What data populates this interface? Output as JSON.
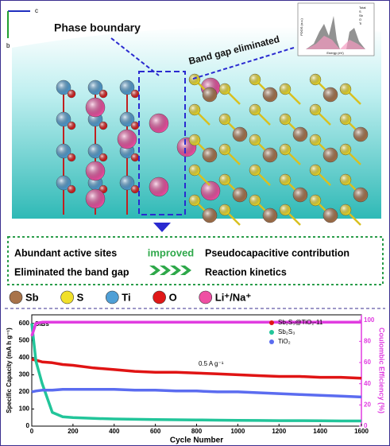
{
  "illustration": {
    "phase_label": "Phase boundary",
    "band_label": "Band gap eliminated",
    "axis_c": "c",
    "axis_b": "b",
    "inset": {
      "y_label": "PDOS (a.u.)",
      "x_label": "Energy (eV)",
      "legend": [
        "Total",
        "S",
        "Sb",
        "O",
        "Ti"
      ]
    }
  },
  "summary": {
    "left": [
      "Abundant active sites",
      "Eliminated the band gap"
    ],
    "middle": "improved",
    "right": [
      "Pseudocapacitive contribution",
      "Reaction kinetics"
    ]
  },
  "atom_legend": [
    {
      "label": "Sb",
      "color": "#a8734a"
    },
    {
      "label": "S",
      "color": "#f1e02a"
    },
    {
      "label": "Ti",
      "color": "#4f9fd6"
    },
    {
      "label": "O",
      "color": "#e01818"
    },
    {
      "label": "Li⁺/Na⁺",
      "color": "#ef4fa3"
    }
  ],
  "chart_data": {
    "type": "line",
    "x_label": "Cycle Number",
    "y_label": "Specific Capacity (mA h g⁻¹)",
    "y2_label": "Coulombic Efficiency (%)",
    "annotations": [
      "SIBs",
      "0.5 A g⁻¹"
    ],
    "x": [
      0,
      20,
      50,
      100,
      150,
      200,
      300,
      400,
      500,
      600,
      700,
      800,
      900,
      1000,
      1100,
      1200,
      1300,
      1400,
      1500,
      1600
    ],
    "xlim": [
      0,
      1600
    ],
    "xticks": [
      0,
      200,
      400,
      600,
      800,
      1000,
      1200,
      1400,
      1600
    ],
    "ylim": [
      0,
      650
    ],
    "yticks": [
      0,
      100,
      200,
      300,
      400,
      500,
      600
    ],
    "y2lim": [
      0,
      105
    ],
    "y2ticks": [
      0,
      20,
      40,
      60,
      80,
      100
    ],
    "series": [
      {
        "name": "Sb₂S₃@TiO₂-11",
        "color": "#e01414",
        "values": [
          390,
          385,
          375,
          370,
          360,
          355,
          340,
          330,
          320,
          315,
          315,
          310,
          305,
          300,
          295,
          290,
          290,
          285,
          285,
          280
        ]
      },
      {
        "name": "Sb₂S₃",
        "color": "#22c59a",
        "values": [
          600,
          380,
          250,
          80,
          55,
          50,
          45,
          42,
          40,
          38,
          37,
          36,
          35,
          34,
          33,
          32,
          32,
          31,
          30,
          30
        ]
      },
      {
        "name": "TiO₂",
        "color": "#5b6cf0",
        "values": [
          200,
          205,
          210,
          210,
          215,
          215,
          215,
          215,
          210,
          210,
          205,
          205,
          200,
          200,
          195,
          190,
          185,
          180,
          175,
          170
        ]
      },
      {
        "name": "Coulombic Efficiency",
        "color": "#e03ce0",
        "axis": "y2",
        "in_legend": false,
        "values": [
          85,
          97,
          98,
          98,
          98,
          98,
          98,
          98,
          98,
          98,
          98,
          98,
          98,
          98,
          98,
          98,
          98,
          98,
          98,
          98
        ]
      }
    ]
  }
}
